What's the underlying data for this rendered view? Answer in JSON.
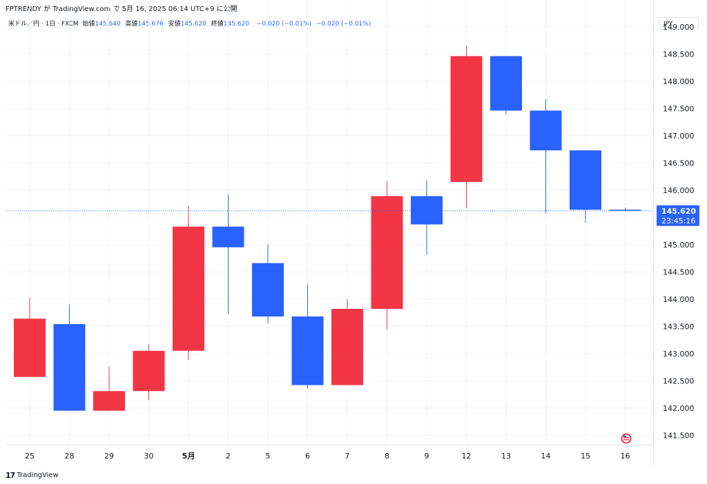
{
  "header": {
    "publisher_line": "FPTRENDY が TradingView.com で 5月 16, 2025 06:14 UTC+9 に公開"
  },
  "legend": {
    "symbol": "米ドル／円 · 1日 · FXCM",
    "open_label": "始値",
    "open_value": "145.640",
    "high_label": "高値",
    "high_value": "145.676",
    "low_label": "安値",
    "low_value": "145.620",
    "close_label": "終値",
    "close_value": "145.620",
    "change": "−0.020 (−0.01%)",
    "change2": "−0.020 (−0.01%)"
  },
  "currency": "JPY",
  "last_price_label": "145.620",
  "countdown": "23:45:16",
  "footer": {
    "brand": "TradingView",
    "mark": "17"
  },
  "colors": {
    "up": "#f23645",
    "down": "#2962ff",
    "grid": "#f0f3fa",
    "last_line": "#2962ff"
  },
  "icons": {
    "event_marker": "us-flag-event-icon"
  },
  "chart_data": {
    "type": "candlestick",
    "up_color_means": "price rose (red)",
    "down_color_means": "price fell (blue)",
    "ylim": [
      141.25,
      149.25
    ],
    "yticks": [
      "149.000",
      "148.500",
      "148.000",
      "147.500",
      "147.000",
      "146.500",
      "146.000",
      "145.500",
      "145.000",
      "144.500",
      "144.000",
      "143.500",
      "143.000",
      "142.500",
      "142.000",
      "141.500"
    ],
    "last_price": 145.62,
    "candles": [
      {
        "label": "25",
        "open": 142.57,
        "high": 144.03,
        "low": 142.57,
        "close": 143.64
      },
      {
        "label": "28",
        "open": 143.54,
        "high": 143.9,
        "low": 141.95,
        "close": 141.95
      },
      {
        "label": "29",
        "open": 141.95,
        "high": 142.76,
        "low": 141.95,
        "close": 142.31
      },
      {
        "label": "30",
        "open": 142.31,
        "high": 143.17,
        "low": 142.15,
        "close": 143.05
      },
      {
        "label": "5月",
        "bold": true,
        "open": 143.05,
        "high": 145.71,
        "low": 142.88,
        "close": 145.33
      },
      {
        "label": "2",
        "open": 145.33,
        "high": 145.92,
        "low": 143.73,
        "close": 144.95
      },
      {
        "label": "5",
        "open": 144.66,
        "high": 145.0,
        "low": 143.55,
        "close": 143.68
      },
      {
        "label": "6",
        "open": 143.68,
        "high": 144.27,
        "low": 142.36,
        "close": 142.42
      },
      {
        "label": "7",
        "open": 142.42,
        "high": 144.0,
        "low": 142.42,
        "close": 143.82
      },
      {
        "label": "8",
        "open": 143.82,
        "high": 146.17,
        "low": 143.44,
        "close": 145.89
      },
      {
        "label": "9",
        "open": 145.89,
        "high": 146.18,
        "low": 144.82,
        "close": 145.37
      },
      {
        "label": "12",
        "open": 146.15,
        "high": 148.65,
        "low": 145.67,
        "close": 148.46
      },
      {
        "label": "13",
        "open": 148.46,
        "high": 148.46,
        "low": 147.38,
        "close": 147.46
      },
      {
        "label": "14",
        "open": 147.46,
        "high": 147.67,
        "low": 145.57,
        "close": 146.73
      },
      {
        "label": "15",
        "open": 146.73,
        "high": 146.73,
        "low": 145.4,
        "close": 145.64
      },
      {
        "label": "16",
        "open": 145.64,
        "high": 145.676,
        "low": 145.62,
        "close": 145.62
      }
    ]
  }
}
